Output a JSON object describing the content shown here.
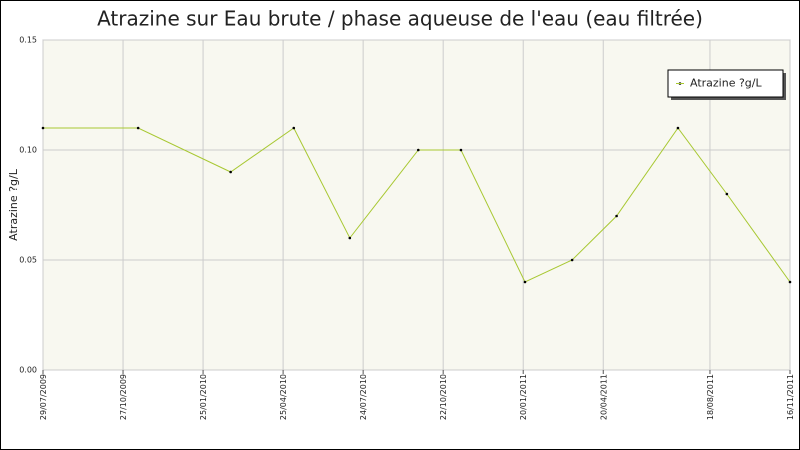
{
  "chart_data": {
    "type": "line",
    "title": "Atrazine sur Eau brute / phase aqueuse de l'eau (eau filtrée)",
    "y_label": "Atrazine ?g/L",
    "x": [
      "29/07/2009",
      "13/11/2009",
      "25/02/2010",
      "07/05/2010",
      "09/07/2010",
      "24/09/2010",
      "11/11/2010",
      "22/01/2011",
      "16/03/2011",
      "05/05/2011",
      "13/07/2011",
      "06/09/2011",
      "16/11/2011"
    ],
    "series": [
      {
        "name": "Atrazine ?g/L",
        "color": "#a8c832",
        "values": [
          0.11,
          0.11,
          0.09,
          0.11,
          0.06,
          0.1,
          0.1,
          0.04,
          0.05,
          0.07,
          0.11,
          0.08,
          0.04
        ]
      }
    ],
    "xlim": [
      "29/07/2009",
      "16/11/2011"
    ],
    "xticks": [
      "29/07/2009",
      "27/10/2009",
      "25/01/2010",
      "25/04/2010",
      "24/07/2010",
      "22/10/2010",
      "20/01/2011",
      "20/04/2011",
      "18/08/2011",
      "16/11/2011"
    ],
    "ylim": [
      0,
      0.15
    ],
    "yticks": [
      {
        "value": 0,
        "label": "0.00"
      },
      0.05,
      {
        "value": 0.1,
        "label": "0.10"
      },
      0.15
    ],
    "grid": true,
    "legend": "top-right"
  }
}
